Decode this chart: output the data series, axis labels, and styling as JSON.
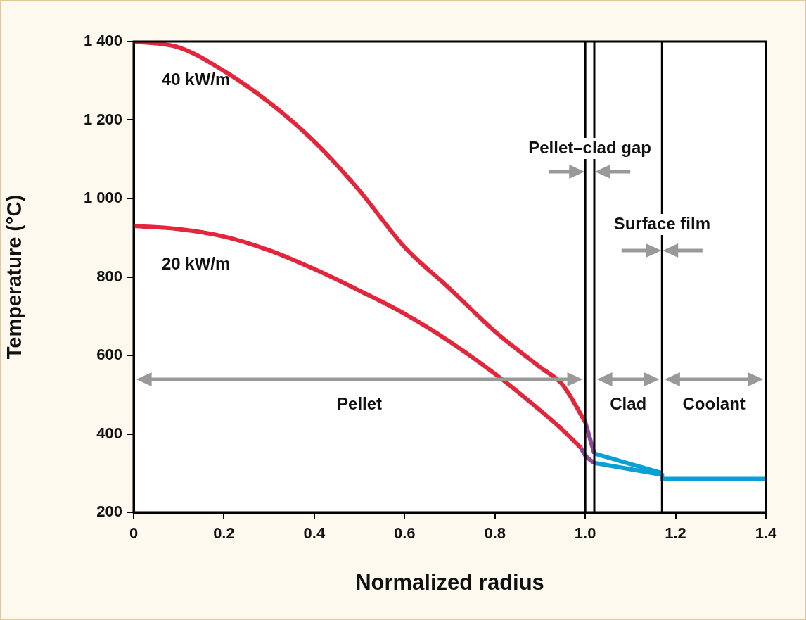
{
  "chart_data": {
    "type": "line",
    "xlabel": "Normalized radius",
    "ylabel": "Temperature (°C)",
    "xlim": [
      0,
      1.4
    ],
    "xticks": [
      0,
      0.2,
      0.4,
      0.6,
      0.8,
      {
        "value": 1,
        "label": "1.0"
      },
      1.2,
      1.4
    ],
    "ylim": [
      200,
      1400
    ],
    "yticks": [
      {
        "value": 200,
        "label": "200"
      },
      {
        "value": 400,
        "label": "400"
      },
      {
        "value": 600,
        "label": "600"
      },
      {
        "value": 800,
        "label": "800"
      },
      {
        "value": 1000,
        "label": "1 000"
      },
      {
        "value": 1200,
        "label": "1 200"
      },
      {
        "value": 1400,
        "label": "1 400"
      }
    ],
    "grid": false,
    "legend": false,
    "marker": "none",
    "line_style": "solid",
    "series": [
      {
        "name": "40 kW/m",
        "color": "#e3263c",
        "x": [
          0,
          0.1,
          0.2,
          0.3,
          0.4,
          0.5,
          0.6,
          0.7,
          0.8,
          0.9,
          0.95,
          1.0
        ],
        "values": [
          1400,
          1385,
          1325,
          1245,
          1145,
          1020,
          876,
          770,
          661,
          570,
          525,
          430
        ]
      },
      {
        "color": "#8a4a9a",
        "x": [
          1.0,
          1.01,
          1.02
        ],
        "values": [
          430,
          390,
          350
        ]
      },
      {
        "color": "#0aa0d6",
        "x": [
          1.02,
          1.17
        ],
        "values": [
          350,
          300
        ]
      },
      {
        "name": "20 kW/m",
        "color": "#e3263c",
        "x": [
          0,
          0.1,
          0.2,
          0.3,
          0.4,
          0.5,
          0.6,
          0.7,
          0.8,
          0.9,
          0.95,
          0.99
        ],
        "values": [
          930,
          922,
          903,
          868,
          820,
          765,
          706,
          635,
          553,
          460,
          410,
          365
        ]
      },
      {
        "color": "#8a4a9a",
        "x": [
          0.99,
          1.0,
          1.02
        ],
        "values": [
          365,
          345,
          326
        ]
      },
      {
        "color": "#0aa0d6",
        "x": [
          1.02,
          1.17
        ],
        "values": [
          326,
          296
        ]
      },
      {
        "color": "#0aa0d6",
        "x": [
          1.17,
          1.17,
          1.4
        ],
        "values": [
          300,
          285,
          285
        ]
      }
    ],
    "ref_lines": [
      {
        "axis": "x",
        "value": 1.0,
        "color": "#000000"
      },
      {
        "axis": "x",
        "value": 1.02,
        "color": "#000000"
      },
      {
        "axis": "x",
        "value": 1.17,
        "color": "#000000"
      }
    ],
    "annotations": [
      "Pellet–clad gap",
      "Surface film",
      "Pellet",
      "Clad",
      "Coolant"
    ]
  }
}
